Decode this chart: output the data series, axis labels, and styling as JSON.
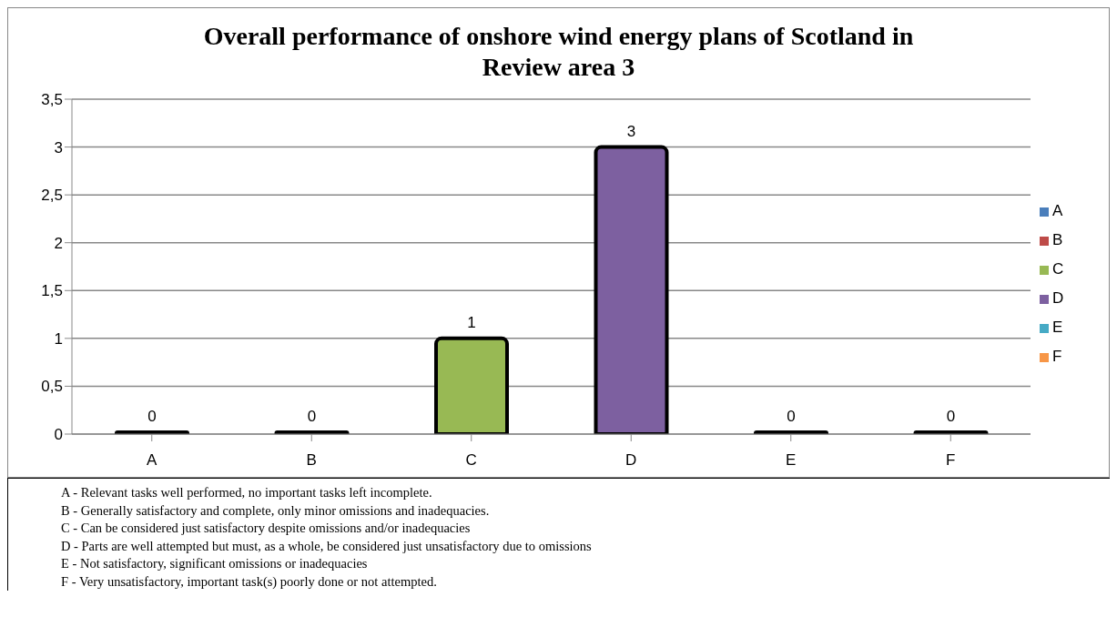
{
  "chart_data": {
    "type": "bar",
    "title": "Overall performance of onshore wind energy plans of Scotland in Review area 3",
    "categories": [
      "A",
      "B",
      "C",
      "D",
      "E",
      "F"
    ],
    "stacked": true,
    "series": [
      {
        "name": "A",
        "color": "#4a7ebb",
        "values": [
          0,
          null,
          null,
          null,
          null,
          null
        ]
      },
      {
        "name": "B",
        "color": "#be4b48",
        "values": [
          null,
          0,
          null,
          null,
          null,
          null
        ]
      },
      {
        "name": "C",
        "color": "#98b954",
        "values": [
          null,
          null,
          1,
          null,
          null,
          null
        ]
      },
      {
        "name": "D",
        "color": "#7d60a0",
        "values": [
          null,
          null,
          null,
          3,
          null,
          null
        ]
      },
      {
        "name": "E",
        "color": "#46aac5",
        "values": [
          null,
          null,
          null,
          null,
          0,
          null
        ]
      },
      {
        "name": "F",
        "color": "#f79646",
        "values": [
          null,
          null,
          null,
          null,
          null,
          0
        ]
      }
    ],
    "ylim": [
      0,
      3.5
    ],
    "yticks": [
      0,
      {
        "value": 0.5,
        "label": "0,5"
      },
      1,
      {
        "value": 1.5,
        "label": "1,5"
      },
      2,
      {
        "value": 2.5,
        "label": "2,5"
      },
      3,
      {
        "value": 3.5,
        "label": "3,5"
      }
    ],
    "grid": "y",
    "legend": "right",
    "data_labels": true,
    "annotations": [
      "A -  Relevant tasks well performed, no important tasks left incomplete.",
      "B -  Generally satisfactory and complete, only minor omissions and inadequacies.",
      "C -  Can be considered just satisfactory despite omissions and/or inadequacies",
      "D -  Parts are well attempted but must, as a whole, be considered just unsatisfactory due to omissions",
      "E -  Not satisfactory, significant omissions or inadequacies",
      "F -  Very unsatisfactory, important task(s) poorly done or not attempted."
    ]
  }
}
